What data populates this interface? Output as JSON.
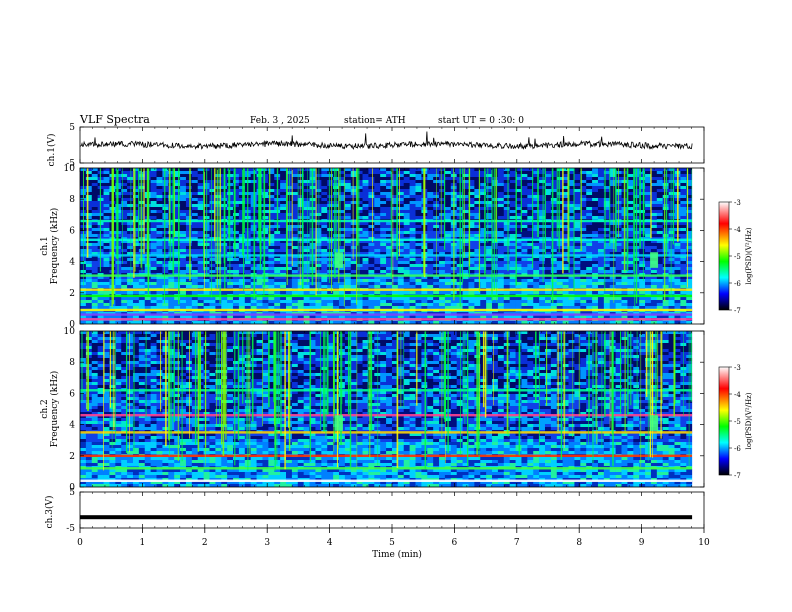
{
  "header": {
    "title": "VLF Spectra",
    "date": "Feb. 3 , 2025",
    "station": "station= ATH",
    "start_ut": "start UT =  0 :30: 0"
  },
  "chart_data": [
    {
      "type": "line",
      "name": "ch1-voltage",
      "ylabel": "ch.1(V)",
      "x_range": [
        0,
        10
      ],
      "ylim": [
        -5,
        5
      ],
      "y_ticks": [
        5,
        -5
      ],
      "baseline": 0,
      "note_visible": "noisy trace around 0 V with sporadic spikes"
    },
    {
      "type": "heatmap",
      "name": "ch1-spectrogram",
      "ylabel": "ch.1\nFrequency (kHz)",
      "ylabel_line1": "ch.1",
      "ylabel_line2": "Frequency (kHz)",
      "x_range": [
        0,
        10
      ],
      "ylim": [
        0,
        10
      ],
      "y_ticks": [
        0,
        2,
        4,
        6,
        8,
        10
      ],
      "colorbar": {
        "label": "log(PSD)(V²/Hz)",
        "range": [
          -7,
          -3
        ],
        "ticks": [
          -3,
          -4,
          -5,
          -6,
          -7
        ],
        "colors": [
          "#ffffff",
          "#ff0000",
          "#ffff00",
          "#00ff00",
          "#00ffff",
          "#0000ff",
          "#000000"
        ]
      },
      "bands_khz": [
        0.3,
        0.6,
        0.9,
        1.8,
        2.2,
        3.1,
        4.4,
        5.4,
        6.6
      ],
      "events_min": [
        4.15,
        9.2
      ]
    },
    {
      "type": "heatmap",
      "name": "ch2-spectrogram",
      "ylabel_line1": "ch.2",
      "ylabel_line2": "Frequency (kHz)",
      "x_range": [
        0,
        10
      ],
      "ylim": [
        0,
        10
      ],
      "y_ticks": [
        0,
        2,
        4,
        6,
        8,
        10
      ],
      "colorbar": {
        "label": "log(PSD)(V²/Hz)",
        "range": [
          -7,
          -3
        ],
        "ticks": [
          -3,
          -4,
          -5,
          -6,
          -7
        ]
      },
      "bands_khz": [
        0.4,
        1.2,
        2.0,
        3.5,
        4.6,
        6.2
      ],
      "events_min": [
        4.15,
        9.2
      ]
    },
    {
      "type": "line",
      "name": "ch3-voltage",
      "ylabel": "ch.3(V)",
      "x_range": [
        0,
        10
      ],
      "ylim": [
        -5,
        5
      ],
      "y_ticks": [
        5,
        -5
      ],
      "baseline": -2
    }
  ],
  "x_axis": {
    "label": "Time (min)",
    "ticks": [
      0,
      1,
      2,
      3,
      4,
      5,
      6,
      7,
      8,
      9,
      10
    ],
    "range": [
      0,
      10
    ]
  },
  "colorbar_tick_labels": [
    "-3",
    "-4",
    "-5",
    "-6",
    "-7"
  ]
}
